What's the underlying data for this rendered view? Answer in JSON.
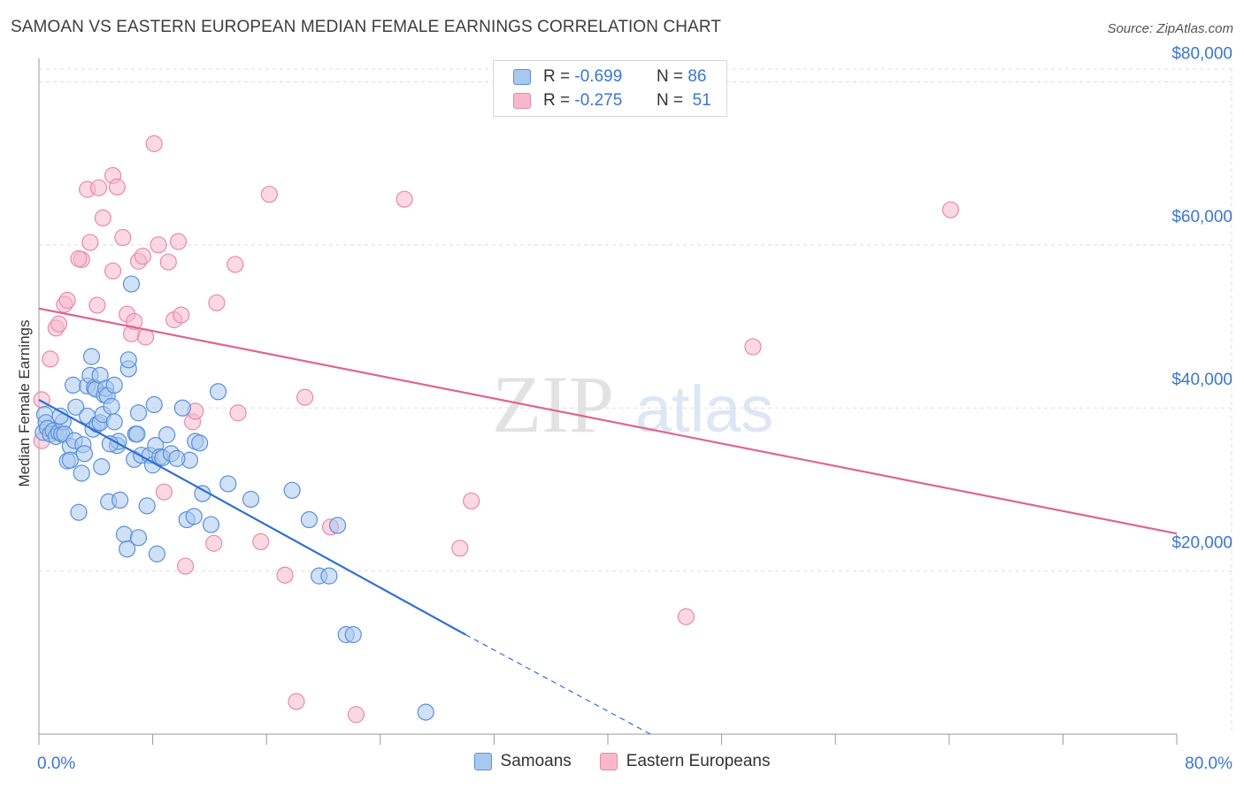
{
  "title": "SAMOAN VS EASTERN EUROPEAN MEDIAN FEMALE EARNINGS CORRELATION CHART",
  "source": "Source: ZipAtlas.com",
  "watermark": {
    "zip": "ZIP",
    "atlas": "atlas"
  },
  "legend_top": [
    {
      "r_label": "R =",
      "r_value": "-0.699",
      "n_label": "N =",
      "n_value": "86",
      "color": "#a9c8f0"
    },
    {
      "r_label": "R =",
      "r_value": "-0.275",
      "n_label": "N =",
      "n_value": "51",
      "color": "#f7b8cc"
    }
  ],
  "colors": {
    "blue_fill": "#a9c8f0",
    "blue_stroke": "#5a8fd8",
    "blue_line": "#2f6fd6",
    "pink_fill": "#f7b8cc",
    "pink_stroke": "#e98aa8",
    "pink_line": "#e0648f",
    "axis_label": "#3b76d0"
  },
  "chart_data": {
    "type": "scatter",
    "xlabel": "",
    "ylabel": "Median Female Earnings",
    "xlim": [
      0,
      80
    ],
    "ylim": [
      0,
      82000
    ],
    "x_tick_labels": [
      {
        "v": 0,
        "label": "0.0%"
      },
      {
        "v": 80,
        "label": "80.0%"
      }
    ],
    "x_ticks": [
      0,
      8,
      16,
      24,
      32,
      40,
      48,
      56,
      64,
      72,
      80
    ],
    "y_ticks": [
      {
        "v": 20000,
        "label": "$20,000"
      },
      {
        "v": 40000,
        "label": "$40,000"
      },
      {
        "v": 60000,
        "label": "$60,000"
      },
      {
        "v": 80000,
        "label": "$80,000"
      }
    ],
    "grid": true,
    "legend_position": "bottom",
    "series": [
      {
        "name": "Samoans",
        "color": "#a9c8f0",
        "trend": {
          "x0": 0,
          "y0": 41000,
          "x1": 30,
          "y1": 12200,
          "dash_to_x": 43,
          "dash_to_y": 0
        },
        "points": [
          [
            0.3,
            37000
          ],
          [
            0.4,
            39200
          ],
          [
            0.5,
            38200
          ],
          [
            0.6,
            37500
          ],
          [
            0.8,
            36800
          ],
          [
            1.0,
            37200
          ],
          [
            1.2,
            36500
          ],
          [
            1.4,
            37000
          ],
          [
            1.6,
            36800
          ],
          [
            1.7,
            38300
          ],
          [
            1.8,
            36800
          ],
          [
            1.5,
            39000
          ],
          [
            2.0,
            33500
          ],
          [
            2.2,
            35300
          ],
          [
            2.4,
            42800
          ],
          [
            2.5,
            36000
          ],
          [
            2.6,
            40100
          ],
          [
            2.8,
            27200
          ],
          [
            3.0,
            32000
          ],
          [
            3.1,
            35500
          ],
          [
            3.2,
            34400
          ],
          [
            3.4,
            39000
          ],
          [
            3.4,
            42700
          ],
          [
            3.6,
            44000
          ],
          [
            3.7,
            46300
          ],
          [
            3.8,
            37400
          ],
          [
            3.9,
            42500
          ],
          [
            4.0,
            42300
          ],
          [
            4.1,
            38000
          ],
          [
            4.3,
            38200
          ],
          [
            4.3,
            44000
          ],
          [
            4.4,
            32800
          ],
          [
            4.5,
            39200
          ],
          [
            4.6,
            41600
          ],
          [
            4.7,
            42400
          ],
          [
            4.8,
            41500
          ],
          [
            4.9,
            28500
          ],
          [
            5.1,
            40200
          ],
          [
            5.3,
            42800
          ],
          [
            5.3,
            38300
          ],
          [
            5.5,
            35400
          ],
          [
            5.6,
            35900
          ],
          [
            5.7,
            28700
          ],
          [
            6.0,
            24500
          ],
          [
            6.2,
            22700
          ],
          [
            6.3,
            44800
          ],
          [
            6.3,
            45900
          ],
          [
            6.5,
            55200
          ],
          [
            6.7,
            33700
          ],
          [
            6.8,
            36800
          ],
          [
            7.0,
            39400
          ],
          [
            7.0,
            24100
          ],
          [
            7.2,
            34200
          ],
          [
            7.6,
            28000
          ],
          [
            7.8,
            34200
          ],
          [
            8.0,
            33000
          ],
          [
            8.2,
            35400
          ],
          [
            8.1,
            40400
          ],
          [
            8.3,
            22100
          ],
          [
            8.5,
            34000
          ],
          [
            8.7,
            33900
          ],
          [
            9.0,
            36700
          ],
          [
            9.3,
            34400
          ],
          [
            10.1,
            40000
          ],
          [
            10.4,
            26300
          ],
          [
            10.6,
            33600
          ],
          [
            10.9,
            26700
          ],
          [
            11.0,
            35900
          ],
          [
            11.3,
            35700
          ],
          [
            11.5,
            29500
          ],
          [
            12.1,
            25700
          ],
          [
            12.6,
            42000
          ],
          [
            13.3,
            30700
          ],
          [
            14.9,
            28800
          ],
          [
            17.8,
            29900
          ],
          [
            19.0,
            26300
          ],
          [
            19.7,
            19400
          ],
          [
            20.4,
            19400
          ],
          [
            21.0,
            25600
          ],
          [
            21.6,
            12200
          ],
          [
            22.1,
            12200
          ],
          [
            27.2,
            2700
          ],
          [
            2.2,
            33600
          ],
          [
            5.0,
            35600
          ],
          [
            6.9,
            36800
          ],
          [
            9.7,
            33800
          ]
        ]
      },
      {
        "name": "Eastern Europeans",
        "color": "#f7b8cc",
        "trend": {
          "x0": 0,
          "y0": 52200,
          "x1": 80,
          "y1": 24600
        },
        "points": [
          [
            0.2,
            41000
          ],
          [
            0.2,
            36000
          ],
          [
            0.8,
            46000
          ],
          [
            1.2,
            49800
          ],
          [
            1.4,
            50300
          ],
          [
            1.8,
            52700
          ],
          [
            2.0,
            53200
          ],
          [
            3.0,
            58200
          ],
          [
            3.4,
            66800
          ],
          [
            3.6,
            60300
          ],
          [
            4.1,
            52600
          ],
          [
            4.2,
            67000
          ],
          [
            4.5,
            63300
          ],
          [
            5.2,
            56800
          ],
          [
            5.2,
            68500
          ],
          [
            5.5,
            67100
          ],
          [
            5.9,
            60900
          ],
          [
            6.2,
            51500
          ],
          [
            6.5,
            49100
          ],
          [
            6.7,
            50600
          ],
          [
            7.0,
            58000
          ],
          [
            7.3,
            58600
          ],
          [
            7.5,
            48700
          ],
          [
            8.1,
            72400
          ],
          [
            8.4,
            60000
          ],
          [
            8.8,
            29700
          ],
          [
            9.1,
            57900
          ],
          [
            9.5,
            50800
          ],
          [
            9.8,
            60400
          ],
          [
            10.0,
            51400
          ],
          [
            10.3,
            20600
          ],
          [
            10.8,
            38300
          ],
          [
            11.0,
            39600
          ],
          [
            12.3,
            23400
          ],
          [
            12.5,
            52900
          ],
          [
            13.8,
            57600
          ],
          [
            14.0,
            39400
          ],
          [
            15.6,
            23600
          ],
          [
            16.2,
            66200
          ],
          [
            17.3,
            19500
          ],
          [
            18.1,
            4000
          ],
          [
            18.7,
            41300
          ],
          [
            20.5,
            25400
          ],
          [
            22.3,
            2400
          ],
          [
            25.7,
            65600
          ],
          [
            29.6,
            22800
          ],
          [
            30.4,
            28600
          ],
          [
            45.5,
            14400
          ],
          [
            50.2,
            47500
          ],
          [
            64.1,
            64300
          ],
          [
            2.8,
            58300
          ]
        ]
      }
    ]
  }
}
